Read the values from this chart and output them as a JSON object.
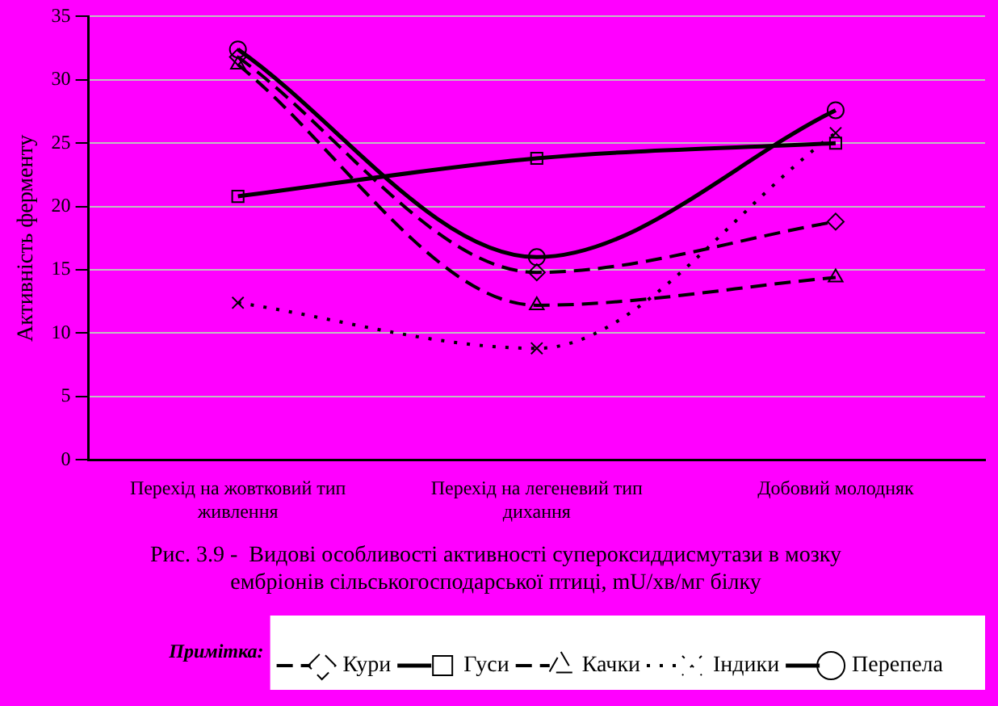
{
  "chart_data": {
    "type": "line",
    "title": [
      "Рис. 3.9 -  Видові особливості активності супероксиддисмутази в мозку",
      "ембріонів сільськогосподарської птиці, mU/хв/мг білку"
    ],
    "ylabel": "Активність ферменту",
    "annotations": [
      "Примітка:"
    ],
    "categories": [
      "Перехід на жовтковий тип живлення",
      "Перехід на легеневий тип дихання",
      "Добовий молодняк"
    ],
    "series": [
      {
        "name": "Кури",
        "color": "#000000",
        "values": [
          31.8,
          14.8,
          18.8
        ],
        "marker": "diamond",
        "line_style": "dashed"
      },
      {
        "name": "Гуси",
        "color": "#000000",
        "values": [
          20.8,
          23.8,
          25.0
        ],
        "marker": "square",
        "line_style": "solid"
      },
      {
        "name": "Качки",
        "color": "#000000",
        "values": [
          31.2,
          12.2,
          14.4
        ],
        "marker": "triangle",
        "line_style": "dashed"
      },
      {
        "name": "Індики",
        "color": "#000000",
        "values": [
          12.4,
          8.8,
          25.8
        ],
        "marker": "cross",
        "line_style": "dotted"
      },
      {
        "name": "Перепела",
        "color": "#000000",
        "values": [
          32.4,
          16.0,
          27.6
        ],
        "marker": "circle",
        "line_style": "solid"
      }
    ],
    "ylim": [
      0,
      35
    ],
    "yticks": [
      0,
      5,
      10,
      15,
      20,
      25,
      30,
      35
    ],
    "grid": "y",
    "legend": "bottom"
  }
}
